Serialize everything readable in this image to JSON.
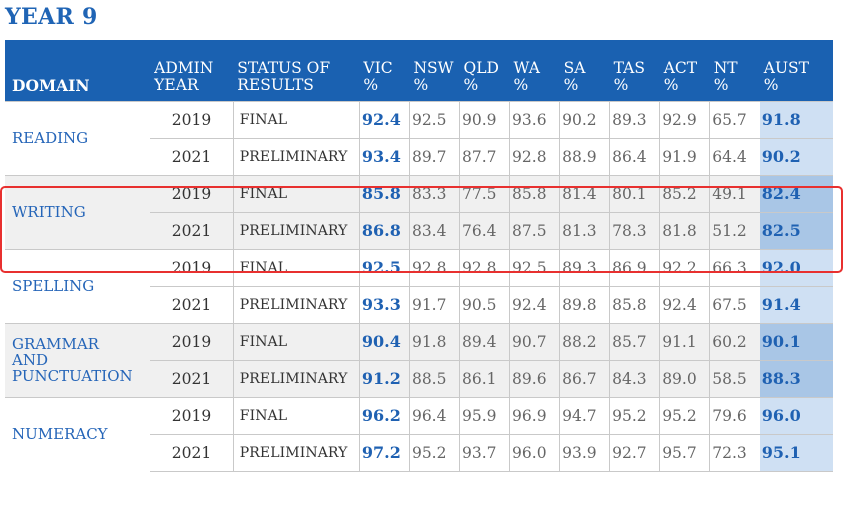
{
  "page_title": "YEAR 9",
  "headers": {
    "domain": "DOMAIN",
    "admin_year": [
      "ADMIN",
      "YEAR"
    ],
    "status": [
      "STATUS OF",
      "RESULTS"
    ],
    "states": [
      {
        "name": "VIC",
        "unit": "%"
      },
      {
        "name": "NSW",
        "unit": "%"
      },
      {
        "name": "QLD",
        "unit": "%"
      },
      {
        "name": "WA",
        "unit": "%"
      },
      {
        "name": "SA",
        "unit": "%"
      },
      {
        "name": "TAS",
        "unit": "%"
      },
      {
        "name": "ACT",
        "unit": "%"
      },
      {
        "name": "NT",
        "unit": "%"
      },
      {
        "name": "AUST",
        "unit": "%"
      }
    ]
  },
  "domains": [
    {
      "name": [
        "READING"
      ],
      "rows": [
        {
          "year": "2019",
          "status": "FINAL",
          "values": [
            "92.4",
            "92.5",
            "90.9",
            "93.6",
            "90.2",
            "89.3",
            "92.9",
            "65.7",
            "91.8"
          ]
        },
        {
          "year": "2021",
          "status": "PRELIMINARY",
          "values": [
            "93.4",
            "89.7",
            "87.7",
            "92.8",
            "88.9",
            "86.4",
            "91.9",
            "64.4",
            "90.2"
          ]
        }
      ]
    },
    {
      "name": [
        "WRITING"
      ],
      "rows": [
        {
          "year": "2019",
          "status": "FINAL",
          "values": [
            "85.8",
            "83.3",
            "77.5",
            "85.8",
            "81.4",
            "80.1",
            "85.2",
            "49.1",
            "82.4"
          ]
        },
        {
          "year": "2021",
          "status": "PRELIMINARY",
          "values": [
            "86.8",
            "83.4",
            "76.4",
            "87.5",
            "81.3",
            "78.3",
            "81.8",
            "51.2",
            "82.5"
          ]
        }
      ]
    },
    {
      "name": [
        "SPELLING"
      ],
      "rows": [
        {
          "year": "2019",
          "status": "FINAL",
          "values": [
            "92.5",
            "92.8",
            "92.8",
            "92.5",
            "89.3",
            "86.9",
            "92.2",
            "66.3",
            "92.0"
          ]
        },
        {
          "year": "2021",
          "status": "PRELIMINARY",
          "values": [
            "93.3",
            "91.7",
            "90.5",
            "92.4",
            "89.8",
            "85.8",
            "92.4",
            "67.5",
            "91.4"
          ]
        }
      ]
    },
    {
      "name": [
        "GRAMMAR",
        "AND",
        "PUNCTUATION"
      ],
      "rows": [
        {
          "year": "2019",
          "status": "FINAL",
          "values": [
            "90.4",
            "91.8",
            "89.4",
            "90.7",
            "88.2",
            "85.7",
            "91.1",
            "60.2",
            "90.1"
          ]
        },
        {
          "year": "2021",
          "status": "PRELIMINARY",
          "values": [
            "91.2",
            "88.5",
            "86.1",
            "89.6",
            "86.7",
            "84.3",
            "89.0",
            "58.5",
            "88.3"
          ]
        }
      ]
    },
    {
      "name": [
        "NUMERACY"
      ],
      "rows": [
        {
          "year": "2019",
          "status": "FINAL",
          "values": [
            "96.2",
            "96.4",
            "95.9",
            "96.9",
            "94.7",
            "95.2",
            "95.2",
            "79.6",
            "96.0"
          ]
        },
        {
          "year": "2021",
          "status": "PRELIMINARY",
          "values": [
            "97.2",
            "95.2",
            "93.7",
            "96.0",
            "93.9",
            "92.7",
            "95.7",
            "72.3",
            "95.1"
          ]
        }
      ]
    }
  ],
  "highlighted_domain": "WRITING",
  "colors": {
    "header_bg": "#1a61b1",
    "title": "#1f64b5",
    "aust_column": "#cfe0f3",
    "highlight_border": "#e8302f"
  }
}
